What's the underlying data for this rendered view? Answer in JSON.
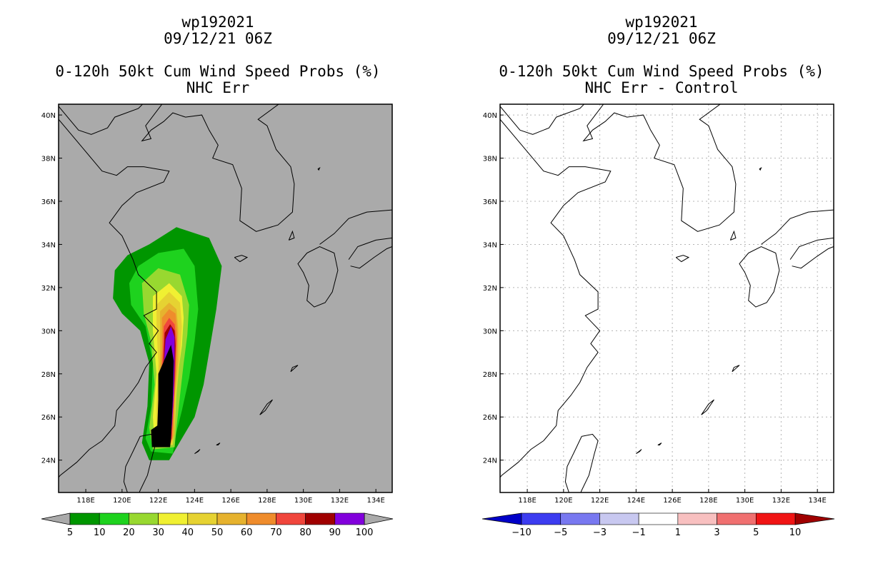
{
  "panels": [
    {
      "storm": "wp192021",
      "datetime": "09/12/21 06Z",
      "title": "0-120h 50kt Cum Wind Speed Probs (%)",
      "subtitle": "NHC Err",
      "background": "#aaaaaa",
      "colorbar": {
        "labels": [
          "5",
          "10",
          "20",
          "30",
          "40",
          "50",
          "60",
          "70",
          "80",
          "90",
          "100"
        ],
        "colors": [
          "#009600",
          "#1ed21e",
          "#98d830",
          "#f0f032",
          "#e6d232",
          "#e6b22e",
          "#ef8c2c",
          "#f0463c",
          "#a00000",
          "#8200dc"
        ]
      }
    },
    {
      "storm": "wp192021",
      "datetime": "09/12/21 06Z",
      "title": "0-120h 50kt Cum Wind Speed Probs (%)",
      "subtitle": "NHC Err - Control",
      "background": "#ffffff",
      "colorbar": {
        "labels": [
          "-10",
          "-5",
          "-3",
          "-1",
          "1",
          "3",
          "5",
          "10"
        ],
        "colors": [
          "#0000c8",
          "#3c3cf0",
          "#7878f0",
          "#c8c8f0",
          "#ffffff",
          "#f8c0c0",
          "#f07070",
          "#f01414",
          "#a00000"
        ]
      }
    }
  ],
  "chart_data": {
    "type": "heatmap",
    "xticks": [
      "118E",
      "120E",
      "122E",
      "124E",
      "126E",
      "128E",
      "130E",
      "132E",
      "134E"
    ],
    "xtick_values": [
      118,
      120,
      122,
      124,
      126,
      128,
      130,
      132,
      134
    ],
    "yticks": [
      "24N",
      "26N",
      "28N",
      "30N",
      "32N",
      "34N",
      "36N",
      "38N",
      "40N"
    ],
    "ytick_values": [
      24,
      26,
      28,
      30,
      32,
      34,
      36,
      38,
      40
    ],
    "xlim": [
      116.5,
      134.9
    ],
    "ylim": [
      22.5,
      40.5
    ],
    "probability_contours": [
      {
        "level": 5,
        "outline": [
          [
            120.3,
            33.5
          ],
          [
            121.5,
            34.0
          ],
          [
            123.0,
            34.8
          ],
          [
            124.8,
            34.3
          ],
          [
            125.5,
            33.0
          ],
          [
            125.2,
            31.0
          ],
          [
            124.8,
            29.0
          ],
          [
            124.5,
            27.5
          ],
          [
            124.0,
            26.0
          ],
          [
            123.3,
            25.0
          ],
          [
            122.6,
            24.0
          ],
          [
            121.5,
            24.0
          ],
          [
            121.1,
            24.8
          ],
          [
            121.4,
            26.5
          ],
          [
            121.5,
            28.5
          ],
          [
            121.0,
            30.0
          ],
          [
            120.0,
            30.8
          ],
          [
            119.5,
            31.5
          ],
          [
            119.6,
            32.8
          ]
        ]
      },
      {
        "level": 10,
        "outline": [
          [
            120.9,
            33.0
          ],
          [
            122.0,
            33.6
          ],
          [
            123.4,
            33.8
          ],
          [
            124.0,
            33.0
          ],
          [
            124.2,
            31.0
          ],
          [
            124.0,
            29.5
          ],
          [
            123.7,
            27.8
          ],
          [
            123.3,
            26.3
          ],
          [
            123.0,
            25.3
          ],
          [
            122.8,
            24.3
          ],
          [
            121.6,
            24.4
          ],
          [
            121.3,
            25.0
          ],
          [
            121.6,
            26.5
          ],
          [
            121.7,
            28.5
          ],
          [
            121.3,
            30.2
          ],
          [
            120.5,
            31.2
          ],
          [
            120.4,
            32.2
          ]
        ]
      },
      {
        "level": 20,
        "outline": [
          [
            121.1,
            32.2
          ],
          [
            122.0,
            32.9
          ],
          [
            123.2,
            32.6
          ],
          [
            123.7,
            31.2
          ],
          [
            123.6,
            29.8
          ],
          [
            123.4,
            28.5
          ],
          [
            123.2,
            27.0
          ],
          [
            123.0,
            25.5
          ],
          [
            122.9,
            24.6
          ],
          [
            121.7,
            24.5
          ],
          [
            121.5,
            25.5
          ],
          [
            121.8,
            27.5
          ],
          [
            121.6,
            29.5
          ],
          [
            121.2,
            30.8
          ]
        ]
      },
      {
        "level": 30,
        "outline": [
          [
            121.7,
            31.6
          ],
          [
            122.6,
            32.2
          ],
          [
            123.3,
            31.6
          ],
          [
            123.4,
            30.6
          ],
          [
            123.3,
            29.3
          ],
          [
            123.0,
            27.5
          ],
          [
            122.9,
            25.5
          ],
          [
            122.8,
            24.7
          ],
          [
            121.8,
            24.7
          ],
          [
            121.7,
            26.0
          ],
          [
            121.9,
            28.0
          ],
          [
            121.7,
            30.0
          ]
        ]
      },
      {
        "level": 40,
        "outline": [
          [
            121.9,
            31.2
          ],
          [
            122.6,
            31.8
          ],
          [
            123.2,
            31.3
          ],
          [
            123.3,
            30.2
          ],
          [
            123.2,
            28.8
          ],
          [
            123.0,
            27.0
          ],
          [
            122.9,
            25.3
          ],
          [
            122.8,
            24.7
          ],
          [
            121.9,
            24.8
          ],
          [
            121.9,
            26.5
          ],
          [
            122.0,
            28.5
          ],
          [
            121.9,
            30.2
          ]
        ]
      },
      {
        "level": 50,
        "outline": [
          [
            122.1,
            30.9
          ],
          [
            122.6,
            31.3
          ],
          [
            123.0,
            31.0
          ],
          [
            123.1,
            30.1
          ],
          [
            123.1,
            28.6
          ],
          [
            122.9,
            26.9
          ],
          [
            122.9,
            25.2
          ],
          [
            122.7,
            24.8
          ],
          [
            121.95,
            24.9
          ],
          [
            122.0,
            27.0
          ],
          [
            122.1,
            29.0
          ]
        ]
      },
      {
        "level": 60,
        "outline": [
          [
            122.2,
            30.6
          ],
          [
            122.6,
            31.0
          ],
          [
            122.95,
            30.8
          ],
          [
            123.05,
            29.9
          ],
          [
            123.0,
            28.4
          ],
          [
            122.9,
            26.8
          ],
          [
            122.8,
            25.1
          ],
          [
            122.7,
            24.8
          ],
          [
            122.0,
            24.9
          ],
          [
            122.05,
            27.0
          ],
          [
            122.2,
            29.2
          ]
        ]
      },
      {
        "level": 70,
        "outline": [
          [
            122.3,
            30.2
          ],
          [
            122.6,
            30.6
          ],
          [
            122.9,
            30.3
          ],
          [
            123.0,
            29.6
          ],
          [
            122.95,
            28.2
          ],
          [
            122.85,
            26.6
          ],
          [
            122.75,
            25.0
          ],
          [
            122.65,
            24.85
          ],
          [
            122.05,
            24.95
          ],
          [
            122.1,
            27.0
          ],
          [
            122.25,
            29.0
          ]
        ]
      },
      {
        "level": 80,
        "outline": [
          [
            122.35,
            29.9
          ],
          [
            122.65,
            30.3
          ],
          [
            122.9,
            30.0
          ],
          [
            122.95,
            29.3
          ],
          [
            122.9,
            27.8
          ],
          [
            122.8,
            26.3
          ],
          [
            122.7,
            25.0
          ],
          [
            122.6,
            24.9
          ],
          [
            122.1,
            24.95
          ],
          [
            122.15,
            27.0
          ],
          [
            122.3,
            28.8
          ]
        ]
      },
      {
        "level": 90,
        "outline": [
          [
            122.4,
            29.6
          ],
          [
            122.7,
            30.2
          ],
          [
            122.9,
            29.7
          ],
          [
            122.9,
            28.6
          ],
          [
            122.85,
            27.0
          ],
          [
            122.75,
            25.6
          ],
          [
            122.65,
            24.95
          ],
          [
            122.15,
            25.0
          ],
          [
            122.2,
            26.5
          ],
          [
            122.3,
            28.4
          ]
        ]
      },
      {
        "level": 100,
        "outline": [
          [
            122.0,
            28.0
          ],
          [
            122.7,
            29.35
          ],
          [
            122.85,
            28.6
          ],
          [
            122.8,
            26.8
          ],
          [
            122.7,
            25.0
          ],
          [
            122.65,
            24.6
          ],
          [
            121.65,
            24.6
          ],
          [
            121.6,
            25.4
          ],
          [
            121.95,
            25.6
          ],
          [
            122.0,
            26.8
          ]
        ]
      }
    ],
    "difference_field": "all values within -1 to 1 (no shading)"
  }
}
